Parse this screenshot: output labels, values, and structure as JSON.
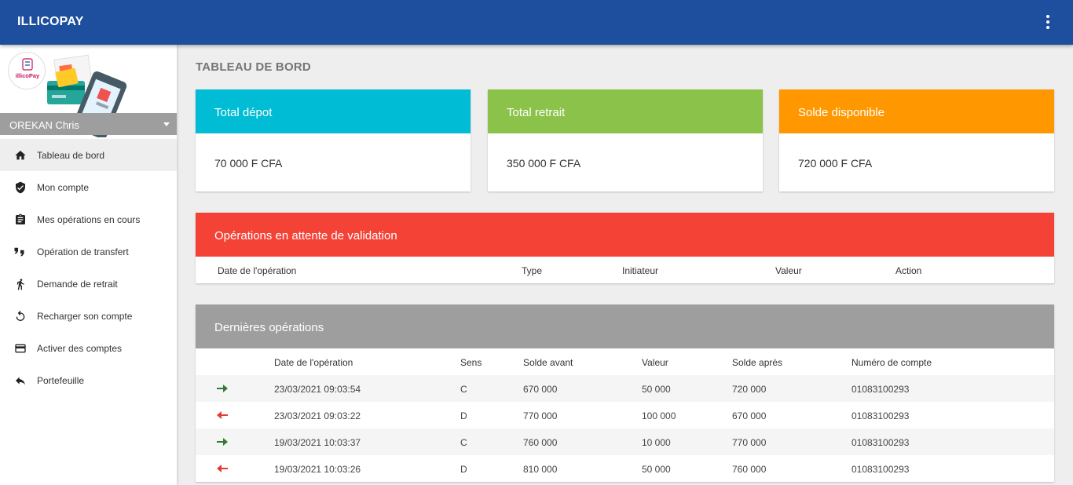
{
  "app": {
    "brand": "ILLICOPAY",
    "logo_text": "illicoPay"
  },
  "sidebar": {
    "user_name": "OREKAN Chris",
    "items": [
      {
        "label": "Tableau de bord",
        "icon": "home-icon"
      },
      {
        "label": "Mon compte",
        "icon": "shield-check-icon"
      },
      {
        "label": "Mes opérations en cours",
        "icon": "clipboard-icon"
      },
      {
        "label": "Opération de transfert",
        "icon": "transfer-icon"
      },
      {
        "label": "Demande de retrait",
        "icon": "walking-person-icon"
      },
      {
        "label": "Recharger son compte",
        "icon": "refresh-icon"
      },
      {
        "label": "Activer des comptes",
        "icon": "credit-card-icon"
      },
      {
        "label": "Portefeuille",
        "icon": "reply-icon"
      }
    ]
  },
  "page": {
    "title": "TABLEAU DE BORD"
  },
  "cards": [
    {
      "title": "Total dépot",
      "value": "70 000 F CFA",
      "color": "#00bcd4"
    },
    {
      "title": "Total retrait",
      "value": "350 000 F CFA",
      "color": "#8bc34a"
    },
    {
      "title": "Solde disponible",
      "value": "720 000 F CFA",
      "color": "#ff9800"
    }
  ],
  "pending": {
    "title": "Opérations en attente de validation",
    "color": "#f44336",
    "columns": [
      "Date de l'opération",
      "Type",
      "Initiateur",
      "Valeur",
      "Action"
    ]
  },
  "recent": {
    "title": "Dernières opérations",
    "color": "#9e9e9e",
    "columns": [
      "Date de l'opération",
      "Sens",
      "Solde avant",
      "Valeur",
      "Solde après",
      "Numéro de compte"
    ],
    "rows": [
      {
        "direction": "credit",
        "date": "23/03/2021 09:03:54",
        "sens": "C",
        "avant": "670 000",
        "valeur": "50 000",
        "apres": "720 000",
        "compte": "01083100293"
      },
      {
        "direction": "debit",
        "date": "23/03/2021 09:03:22",
        "sens": "D",
        "avant": "770 000",
        "valeur": "100 000",
        "apres": "670 000",
        "compte": "01083100293"
      },
      {
        "direction": "credit",
        "date": "19/03/2021 10:03:37",
        "sens": "C",
        "avant": "760 000",
        "valeur": "10 000",
        "apres": "770 000",
        "compte": "01083100293"
      },
      {
        "direction": "debit",
        "date": "19/03/2021 10:03:26",
        "sens": "D",
        "avant": "810 000",
        "valeur": "50 000",
        "apres": "760 000",
        "compte": "01083100293"
      }
    ]
  }
}
